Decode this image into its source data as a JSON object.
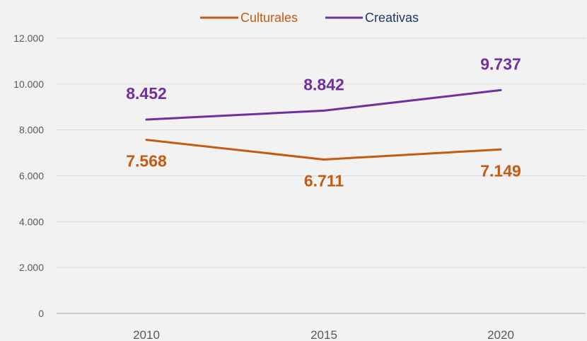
{
  "chart_data": {
    "type": "line",
    "x": [
      "2010",
      "2015",
      "2020"
    ],
    "series": [
      {
        "name": "Culturales",
        "values": [
          7568,
          6711,
          7149
        ],
        "labels": [
          "7.568",
          "6.711",
          "7.149"
        ],
        "color": "#c55a11"
      },
      {
        "name": "Creativas",
        "values": [
          8452,
          8842,
          9737
        ],
        "labels": [
          "8.452",
          "8.842",
          "9.737"
        ],
        "color": "#7030a0"
      }
    ],
    "ylim": [
      0,
      12000
    ],
    "yticks": [
      0,
      2000,
      4000,
      6000,
      8000,
      10000,
      12000
    ],
    "ytick_labels": [
      "0",
      "2.000",
      "4.000",
      "6.000",
      "8.000",
      "10.000",
      "12.000"
    ],
    "grid": true,
    "legend": "top-center",
    "legend_text_color": "#1f3864"
  }
}
